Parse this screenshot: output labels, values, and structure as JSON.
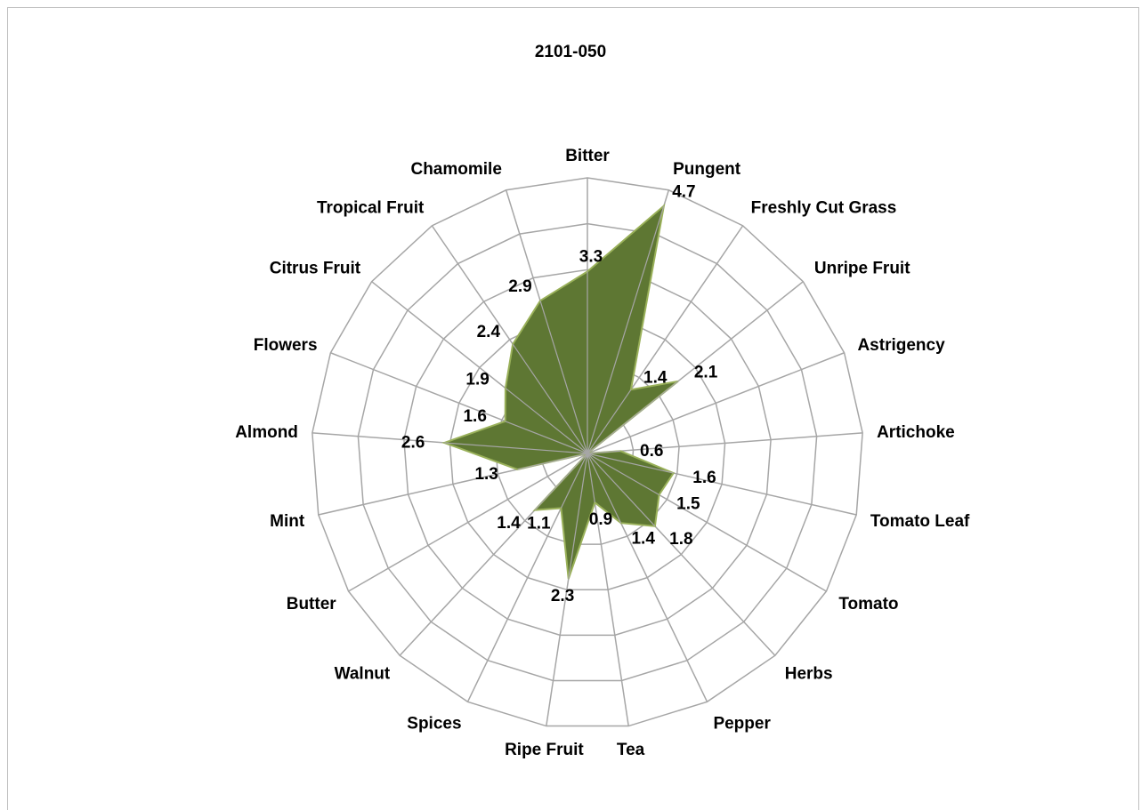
{
  "chart_data": {
    "type": "radar",
    "title": "2101-050",
    "categories": [
      "Bitter",
      "Pungent",
      "Freshly Cut Grass",
      "Unripe Fruit",
      "Astrigency",
      "Artichoke",
      "Tomato Leaf",
      "Tomato",
      "Herbs",
      "Pepper",
      "Tea",
      "Ripe Fruit",
      "Spices",
      "Walnut",
      "Butter",
      "Mint",
      "Almond",
      "Flowers",
      "Citrus Fruit",
      "Tropical Fruit",
      "Chamomile"
    ],
    "values": [
      3.3,
      4.7,
      1.4,
      2.1,
      0.0,
      0.6,
      1.6,
      1.5,
      1.8,
      1.4,
      0.9,
      2.3,
      1.1,
      1.4,
      0.0,
      1.3,
      2.6,
      1.6,
      1.9,
      2.4,
      2.9
    ],
    "data_labels": [
      "3.3",
      "4.7",
      "1.4",
      "2.1",
      "",
      "0.6",
      "1.6",
      "1.5",
      "1.8",
      "1.4",
      "0.9",
      "2.3",
      "1.1",
      "1.4",
      "",
      "1.3",
      "2.6",
      "1.6",
      "1.9",
      "2.4",
      "2.9"
    ],
    "rlim": [
      0,
      5
    ],
    "rings": 6,
    "grid": true,
    "fill_color": "#5e7733",
    "line_color": "#9ab15a",
    "grid_color": "#a6a6a6"
  }
}
